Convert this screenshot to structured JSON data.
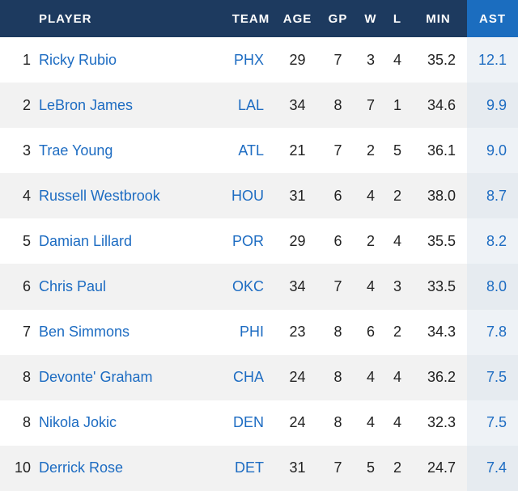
{
  "headers": {
    "rank": "",
    "player": "PLAYER",
    "team": "TEAM",
    "age": "AGE",
    "gp": "GP",
    "w": "W",
    "l": "L",
    "min": "MIN",
    "ast": "AST"
  },
  "colors": {
    "header_bg": "#1d3a5f",
    "sorted_header_bg": "#1b6dbf",
    "link": "#1d6cc2"
  },
  "rows": [
    {
      "rank": "1",
      "player": "Ricky Rubio",
      "team": "PHX",
      "age": "29",
      "gp": "7",
      "w": "3",
      "l": "4",
      "min": "35.2",
      "ast": "12.1"
    },
    {
      "rank": "2",
      "player": "LeBron James",
      "team": "LAL",
      "age": "34",
      "gp": "8",
      "w": "7",
      "l": "1",
      "min": "34.6",
      "ast": "9.9"
    },
    {
      "rank": "3",
      "player": "Trae Young",
      "team": "ATL",
      "age": "21",
      "gp": "7",
      "w": "2",
      "l": "5",
      "min": "36.1",
      "ast": "9.0"
    },
    {
      "rank": "4",
      "player": "Russell Westbrook",
      "team": "HOU",
      "age": "31",
      "gp": "6",
      "w": "4",
      "l": "2",
      "min": "38.0",
      "ast": "8.7"
    },
    {
      "rank": "5",
      "player": "Damian Lillard",
      "team": "POR",
      "age": "29",
      "gp": "6",
      "w": "2",
      "l": "4",
      "min": "35.5",
      "ast": "8.2"
    },
    {
      "rank": "6",
      "player": "Chris Paul",
      "team": "OKC",
      "age": "34",
      "gp": "7",
      "w": "4",
      "l": "3",
      "min": "33.5",
      "ast": "8.0"
    },
    {
      "rank": "7",
      "player": "Ben Simmons",
      "team": "PHI",
      "age": "23",
      "gp": "8",
      "w": "6",
      "l": "2",
      "min": "34.3",
      "ast": "7.8"
    },
    {
      "rank": "8",
      "player": "Devonte' Graham",
      "team": "CHA",
      "age": "24",
      "gp": "8",
      "w": "4",
      "l": "4",
      "min": "36.2",
      "ast": "7.5"
    },
    {
      "rank": "8",
      "player": "Nikola Jokic",
      "team": "DEN",
      "age": "24",
      "gp": "8",
      "w": "4",
      "l": "4",
      "min": "32.3",
      "ast": "7.5"
    },
    {
      "rank": "10",
      "player": "Derrick Rose",
      "team": "DET",
      "age": "31",
      "gp": "7",
      "w": "5",
      "l": "2",
      "min": "24.7",
      "ast": "7.4"
    }
  ]
}
